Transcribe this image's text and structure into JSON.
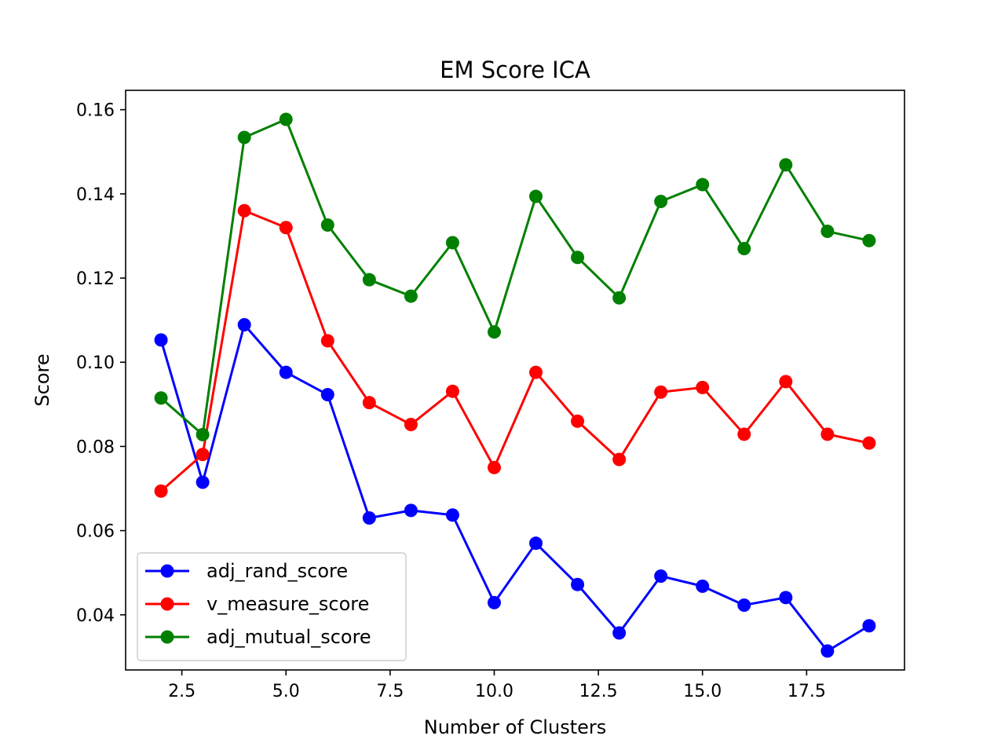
{
  "chart_data": {
    "type": "line",
    "title": "EM Score ICA",
    "xlabel": "Number of Clusters",
    "ylabel": "Score",
    "x": [
      2,
      3,
      4,
      5,
      6,
      7,
      8,
      9,
      10,
      11,
      12,
      13,
      14,
      15,
      16,
      17,
      18,
      19
    ],
    "xlim": [
      1.15,
      19.85
    ],
    "ylim": [
      0.0269,
      0.1646
    ],
    "xticks": [
      2.5,
      5.0,
      7.5,
      10.0,
      12.5,
      15.0,
      17.5
    ],
    "xtick_labels": [
      "2.5",
      "5.0",
      "7.5",
      "10.0",
      "12.5",
      "15.0",
      "17.5"
    ],
    "yticks": [
      0.04,
      0.06,
      0.08,
      0.1,
      0.12,
      0.14,
      0.16
    ],
    "ytick_labels": [
      "0.04",
      "0.06",
      "0.08",
      "0.10",
      "0.12",
      "0.14",
      "0.16"
    ],
    "grid": false,
    "legend_position": "lower-left",
    "series": [
      {
        "name": "adj_rand_score",
        "color": "#0000ff",
        "marker": "circle",
        "values": [
          0.1053,
          0.0715,
          0.1089,
          0.0976,
          0.0923,
          0.063,
          0.0648,
          0.0637,
          0.0429,
          0.057,
          0.0472,
          0.0357,
          0.0492,
          0.0468,
          0.0423,
          0.0441,
          0.0314,
          0.0374
        ]
      },
      {
        "name": "v_measure_score",
        "color": "#ff0000",
        "marker": "circle",
        "values": [
          0.0694,
          0.0781,
          0.136,
          0.132,
          0.1051,
          0.0904,
          0.0852,
          0.0931,
          0.075,
          0.0976,
          0.086,
          0.0769,
          0.0929,
          0.094,
          0.0829,
          0.0954,
          0.0829,
          0.0808
        ]
      },
      {
        "name": "adj_mutual_score",
        "color": "#008000",
        "marker": "circle",
        "values": [
          0.0915,
          0.0828,
          0.1534,
          0.1577,
          0.1326,
          0.1196,
          0.1157,
          0.1284,
          0.1072,
          0.1394,
          0.1249,
          0.1153,
          0.1382,
          0.1422,
          0.127,
          0.1469,
          0.1311,
          0.1289
        ]
      }
    ]
  }
}
